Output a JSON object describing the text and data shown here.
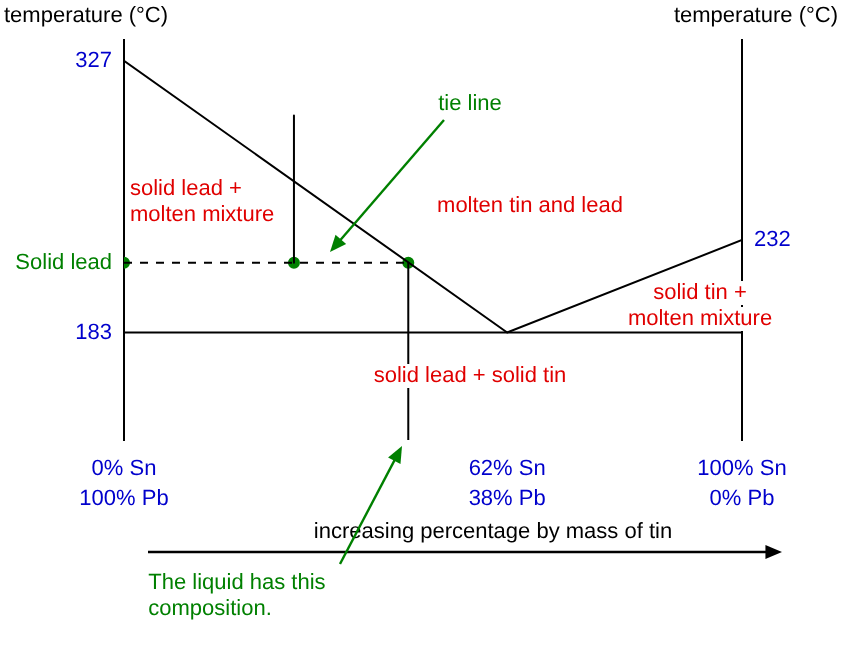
{
  "chart_data": {
    "type": "line",
    "ylabel": "temperature (°C)",
    "y2label": "temperature (°C)",
    "xlabel": "increasing percentage by mass of tin",
    "xlim": [
      0,
      100
    ],
    "xticks": [
      {
        "value": 0,
        "label": "0% Sn"
      },
      {
        "value": 62,
        "label": "62% Sn"
      },
      {
        "value": 100,
        "label": "100% Sn"
      }
    ],
    "x2lim": [
      100,
      0
    ],
    "x2ticks": [
      {
        "value": 100,
        "label": "100% Pb"
      },
      {
        "value": 38,
        "label": "38% Pb"
      },
      {
        "value": 0,
        "label": "0% Pb"
      }
    ],
    "ylim": [
      126,
      338
    ],
    "yticks": [
      327,
      183
    ],
    "grid": false,
    "legend": false,
    "series": [
      {
        "color": "#000000",
        "x": [
          0,
          62,
          100
        ],
        "values": [
          327,
          183,
          232
        ]
      },
      {
        "color": "#000000",
        "x": [
          0,
          100
        ],
        "values": [
          183,
          183
        ]
      },
      {
        "color": "#000000",
        "x": [
          0,
          46
        ],
        "values": [
          220,
          220
        ],
        "line_style": "dashed"
      },
      {
        "color": "#000000",
        "x": [
          27.5,
          27.5
        ],
        "values": [
          298,
          220
        ]
      },
      {
        "color": "#000000",
        "x": [
          46,
          46
        ],
        "values": [
          220,
          126
        ]
      },
      {
        "type": "scatter",
        "color": "#008000",
        "x": [
          0,
          27.5,
          46
        ],
        "values": [
          220,
          220,
          220
        ],
        "marker": "circle"
      }
    ],
    "annotations": [
      "solid lead +\nmolten mixture",
      "molten tin and lead",
      "solid tin +\nmolten mixture",
      "solid lead + solid tin",
      "tie line",
      {
        "text": "Solid lead",
        "x": 0,
        "y": 220
      },
      {
        "text": "The liquid has this\ncomposition.",
        "x": 46,
        "y": 126
      },
      {
        "text": "232",
        "x": 100,
        "y": 232
      }
    ]
  }
}
